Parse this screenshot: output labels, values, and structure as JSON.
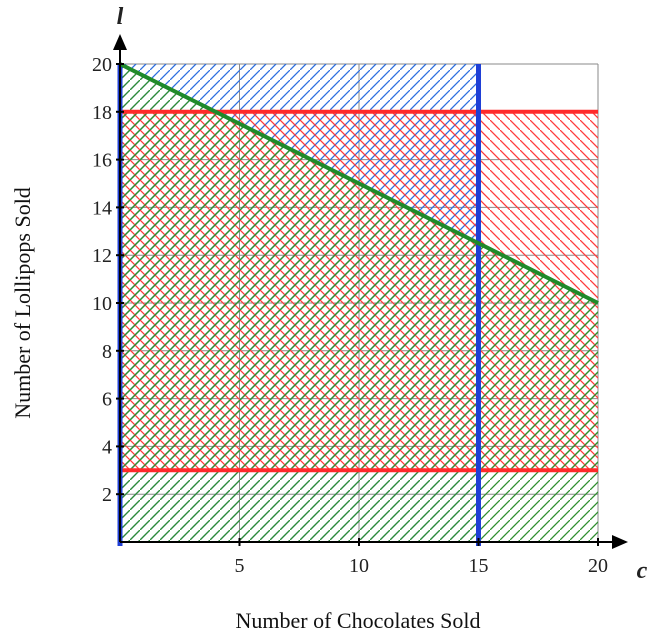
{
  "chart_data": {
    "type": "line",
    "xlabel": "Number of Chocolates Sold",
    "ylabel": "Number of Lollipops Sold",
    "x_var": "c",
    "y_var": "l",
    "xlim": [
      0,
      20
    ],
    "ylim": [
      0,
      20
    ],
    "x_ticks": [
      5,
      10,
      15,
      20
    ],
    "y_ticks": [
      2,
      4,
      6,
      8,
      10,
      12,
      14,
      16,
      18,
      20
    ],
    "grid": true,
    "lines": [
      {
        "kind": "horizontal",
        "y": 18,
        "color": "#ff2a2a"
      },
      {
        "kind": "horizontal",
        "y": 3,
        "color": "#ff2a2a"
      },
      {
        "kind": "vertical",
        "x": 0,
        "color": "#1f3fd6"
      },
      {
        "kind": "vertical",
        "x": 15,
        "color": "#1f3fd6"
      },
      {
        "kind": "segment",
        "x": [
          0,
          20
        ],
        "y": [
          20,
          10
        ],
        "color": "#1f8a2a"
      }
    ],
    "shaded_regions": [
      {
        "hatch": "blue",
        "color": "#2d6fe0",
        "x": [
          0,
          15
        ],
        "y": [
          0,
          20
        ]
      },
      {
        "hatch": "red",
        "color": "#ff3b3b",
        "x": [
          0,
          20
        ],
        "y": [
          3,
          18
        ]
      },
      {
        "hatch": "green",
        "color": "#2f8f2f",
        "polygon_x": [
          0,
          20,
          20,
          0
        ],
        "polygon_y": [
          0,
          0,
          10,
          20
        ]
      }
    ]
  }
}
